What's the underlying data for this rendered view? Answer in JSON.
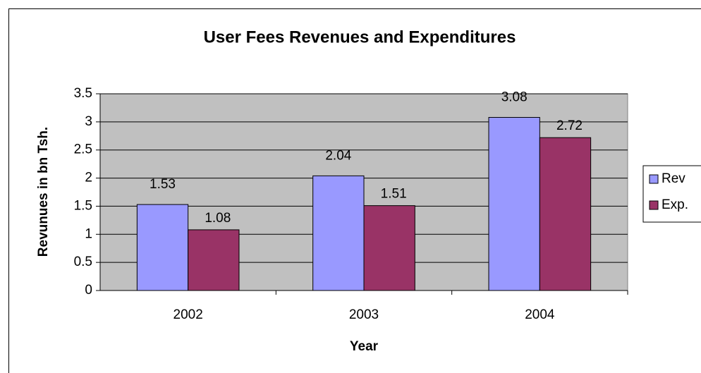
{
  "chart_data": {
    "type": "bar",
    "title": "User Fees Revenues and Expenditures",
    "x_label": "Year",
    "y_label": "Revunues in bn Tsh.",
    "categories": [
      "2002",
      "2003",
      "2004"
    ],
    "series": [
      {
        "name": "Rev",
        "color": "#9999ff",
        "values": [
          1.53,
          2.04,
          3.08
        ]
      },
      {
        "name": "Exp.",
        "color": "#993366",
        "values": [
          1.08,
          1.51,
          2.72
        ]
      }
    ],
    "ylim": [
      0,
      3.5
    ],
    "yticks": [
      0,
      0.5,
      1,
      1.5,
      2,
      2.5,
      3,
      3.5
    ],
    "grid": true,
    "legend": "right"
  }
}
